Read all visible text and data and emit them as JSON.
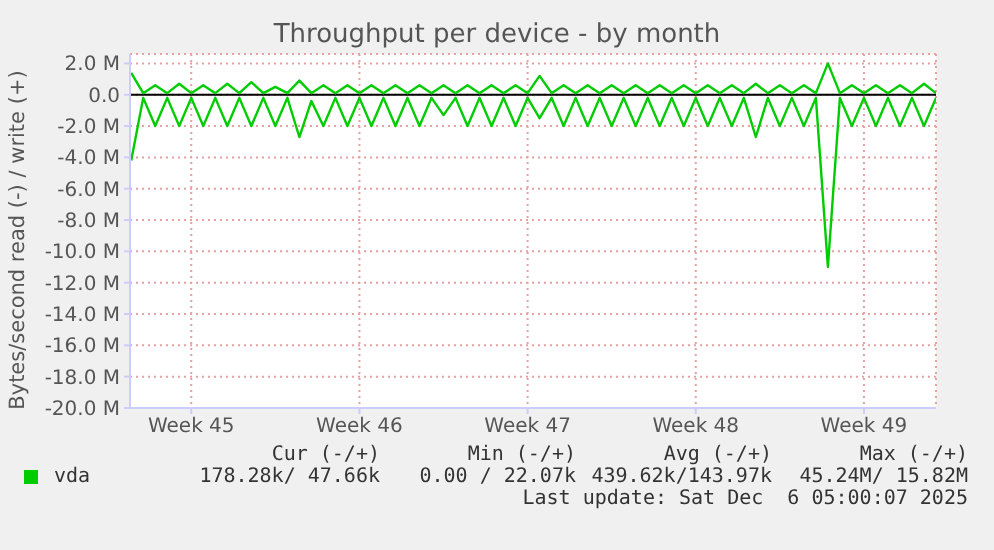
{
  "chart_data": {
    "type": "line",
    "title": "Throughput per device - by month",
    "ylabel": "Bytes/second read (-) / write (+)",
    "categories": [
      null,
      null,
      null,
      null,
      null,
      "Week 45",
      null,
      null,
      null,
      null,
      null,
      null,
      null,
      null,
      null,
      null,
      null,
      null,
      null,
      "Week 46",
      null,
      null,
      null,
      null,
      null,
      null,
      null,
      null,
      null,
      null,
      null,
      null,
      null,
      "Week 47",
      null,
      null,
      null,
      null,
      null,
      null,
      null,
      null,
      null,
      null,
      null,
      null,
      null,
      "Week 48",
      null,
      null,
      null,
      null,
      null,
      null,
      null,
      null,
      null,
      null,
      null,
      null,
      null,
      "Week 49",
      null,
      null,
      null,
      null,
      null,
      null
    ],
    "series": [
      {
        "name": "vda",
        "color": "#00cc00",
        "values": [
          -4.2,
          -0.2,
          -2.0,
          -0.2,
          -2.0,
          -0.2,
          -2.0,
          -0.2,
          -2.0,
          -0.2,
          -2.0,
          -0.2,
          -2.0,
          -0.2,
          -2.7,
          -0.4,
          -2.0,
          -0.2,
          -2.0,
          -0.2,
          -2.0,
          -0.2,
          -2.0,
          -0.2,
          -2.0,
          -0.2,
          -1.3,
          -0.2,
          -2.0,
          -0.2,
          -2.0,
          -0.2,
          -2.0,
          -0.2,
          -1.5,
          -0.2,
          -2.0,
          -0.2,
          -2.0,
          -0.2,
          -2.0,
          -0.2,
          -2.0,
          -0.2,
          -2.0,
          -0.2,
          -2.0,
          -0.2,
          -2.0,
          -0.2,
          -2.0,
          -0.2,
          -2.7,
          -0.2,
          -2.0,
          -0.2,
          -2.0,
          -0.2,
          -11.0,
          -0.2,
          -2.0,
          -0.2,
          -2.0,
          -0.2,
          -2.0,
          -0.2,
          -2.0,
          -0.2
        ]
      },
      {
        "color": "#00cc00",
        "values": [
          1.4,
          0.1,
          0.6,
          0.1,
          0.7,
          0.1,
          0.6,
          0.1,
          0.7,
          0.1,
          0.8,
          0.1,
          0.5,
          0.1,
          0.9,
          0.1,
          0.6,
          0.1,
          0.6,
          0.1,
          0.6,
          0.1,
          0.6,
          0.1,
          0.6,
          0.1,
          0.6,
          0.1,
          0.6,
          0.1,
          0.6,
          0.1,
          0.6,
          0.1,
          1.2,
          0.1,
          0.6,
          0.1,
          0.6,
          0.1,
          0.6,
          0.1,
          0.6,
          0.1,
          0.6,
          0.1,
          0.6,
          0.1,
          0.6,
          0.1,
          0.6,
          0.1,
          0.7,
          0.1,
          0.6,
          0.1,
          0.6,
          0.1,
          2.0,
          0.1,
          0.6,
          0.1,
          0.6,
          0.1,
          0.6,
          0.1,
          0.7,
          0.1
        ]
      }
    ],
    "ylim": [
      -20,
      2.6
    ],
    "yticks": [
      {
        "value": -20,
        "label": "-20.0 M"
      },
      {
        "value": -18,
        "label": "-18.0 M"
      },
      {
        "value": -16,
        "label": "-16.0 M"
      },
      {
        "value": -14,
        "label": "-14.0 M"
      },
      {
        "value": -12,
        "label": "-12.0 M"
      },
      {
        "value": -10,
        "label": "-10.0 M"
      },
      {
        "value": -8,
        "label": "-8.0 M"
      },
      {
        "value": -6,
        "label": "-6.0 M"
      },
      {
        "value": -4,
        "label": "-4.0 M"
      },
      {
        "value": -2,
        "label": "-2.0 M"
      },
      {
        "value": 0,
        "label": "0.0"
      },
      {
        "value": 2,
        "label": "2.0 M"
      }
    ],
    "ref_lines": [
      {
        "axis": "y",
        "value": 0,
        "color": "#000000"
      }
    ],
    "grid": true,
    "legend": "bottom left",
    "line_style": "solid",
    "annotations": [
      "Cur (-/+)",
      "Min (-/+)",
      "Avg (-/+)",
      "Max (-/+)",
      "178.28k/ 47.66k",
      "0.00 / 22.07k",
      "439.62k/143.97k",
      "45.24M/ 15.82M",
      "Last update: Sat Dec  6 05:00:07 2025"
    ]
  }
}
